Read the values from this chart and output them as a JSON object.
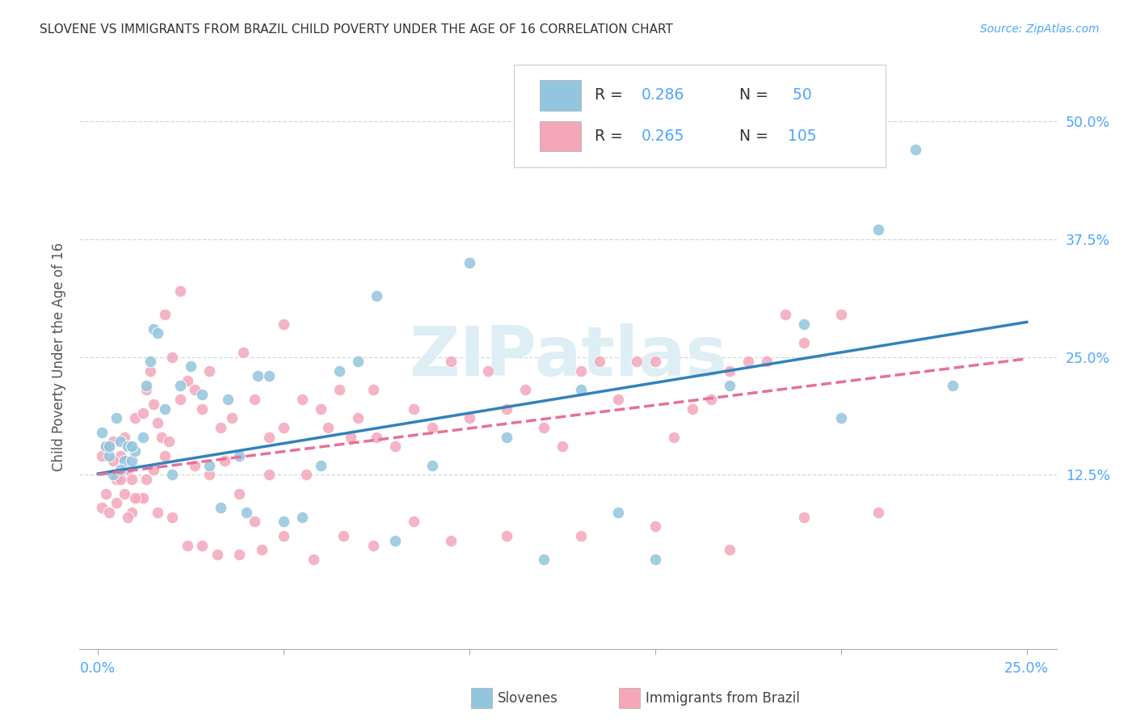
{
  "title": "SLOVENE VS IMMIGRANTS FROM BRAZIL CHILD POVERTY UNDER THE AGE OF 16 CORRELATION CHART",
  "source": "Source: ZipAtlas.com",
  "ylabel": "Child Poverty Under the Age of 16",
  "xlim": [
    -0.005,
    0.258
  ],
  "ylim": [
    -0.06,
    0.56
  ],
  "xtick_positions": [
    0.0,
    0.05,
    0.1,
    0.15,
    0.2,
    0.25
  ],
  "xtick_labels": [
    "0.0%",
    "",
    "",
    "",
    "",
    "25.0%"
  ],
  "ytick_vals": [
    0.125,
    0.25,
    0.375,
    0.5
  ],
  "ytick_labels": [
    "12.5%",
    "25.0%",
    "37.5%",
    "50.0%"
  ],
  "legend_r1": "R = 0.286",
  "legend_n1": "N =  50",
  "legend_r2": "R = 0.265",
  "legend_n2": "N = 105",
  "color_blue": "#92c5de",
  "color_pink": "#f4a7b9",
  "line_blue": "#3182bd",
  "line_pink": "#e8709a",
  "axis_tick_color": "#4da6ff",
  "background_color": "#ffffff",
  "watermark": "ZIPatlas",
  "watermark_color": "#ddeef5",
  "grid_color": "#d0d8e0",
  "bottom_legend_labels": [
    "Slovenes",
    "Immigrants from Brazil"
  ],
  "slov_x": [
    0.002,
    0.003,
    0.004,
    0.005,
    0.006,
    0.007,
    0.008,
    0.009,
    0.01,
    0.012,
    0.013,
    0.014,
    0.015,
    0.016,
    0.018,
    0.02,
    0.022,
    0.025,
    0.028,
    0.03,
    0.033,
    0.035,
    0.038,
    0.04,
    0.043,
    0.046,
    0.05,
    0.055,
    0.06,
    0.065,
    0.07,
    0.075,
    0.08,
    0.09,
    0.1,
    0.11,
    0.12,
    0.13,
    0.14,
    0.15,
    0.17,
    0.19,
    0.2,
    0.21,
    0.22,
    0.23,
    0.001,
    0.003,
    0.006,
    0.009
  ],
  "slov_y": [
    0.155,
    0.145,
    0.125,
    0.185,
    0.16,
    0.14,
    0.155,
    0.14,
    0.15,
    0.165,
    0.22,
    0.245,
    0.28,
    0.275,
    0.195,
    0.125,
    0.22,
    0.24,
    0.21,
    0.135,
    0.09,
    0.205,
    0.145,
    0.085,
    0.23,
    0.23,
    0.075,
    0.08,
    0.135,
    0.235,
    0.245,
    0.315,
    0.055,
    0.135,
    0.35,
    0.165,
    0.035,
    0.215,
    0.085,
    0.035,
    0.22,
    0.285,
    0.185,
    0.385,
    0.47,
    0.22,
    0.17,
    0.155,
    0.13,
    0.155
  ],
  "braz_x": [
    0.001,
    0.002,
    0.003,
    0.004,
    0.005,
    0.006,
    0.007,
    0.008,
    0.009,
    0.01,
    0.011,
    0.012,
    0.013,
    0.014,
    0.015,
    0.016,
    0.017,
    0.018,
    0.019,
    0.02,
    0.022,
    0.024,
    0.026,
    0.028,
    0.03,
    0.033,
    0.036,
    0.039,
    0.042,
    0.046,
    0.05,
    0.055,
    0.06,
    0.065,
    0.07,
    0.075,
    0.08,
    0.085,
    0.09,
    0.095,
    0.1,
    0.105,
    0.11,
    0.115,
    0.12,
    0.125,
    0.13,
    0.135,
    0.14,
    0.145,
    0.15,
    0.155,
    0.16,
    0.165,
    0.17,
    0.175,
    0.18,
    0.185,
    0.19,
    0.2,
    0.001,
    0.003,
    0.005,
    0.007,
    0.009,
    0.012,
    0.015,
    0.018,
    0.022,
    0.026,
    0.03,
    0.034,
    0.038,
    0.042,
    0.046,
    0.05,
    0.056,
    0.062,
    0.068,
    0.074,
    0.002,
    0.004,
    0.006,
    0.008,
    0.01,
    0.013,
    0.016,
    0.02,
    0.024,
    0.028,
    0.032,
    0.038,
    0.044,
    0.05,
    0.058,
    0.066,
    0.074,
    0.085,
    0.095,
    0.11,
    0.13,
    0.15,
    0.17,
    0.19,
    0.21
  ],
  "braz_y": [
    0.145,
    0.105,
    0.155,
    0.16,
    0.12,
    0.145,
    0.165,
    0.13,
    0.12,
    0.185,
    0.1,
    0.19,
    0.215,
    0.235,
    0.2,
    0.18,
    0.165,
    0.295,
    0.16,
    0.25,
    0.32,
    0.225,
    0.215,
    0.195,
    0.235,
    0.175,
    0.185,
    0.255,
    0.205,
    0.165,
    0.285,
    0.205,
    0.195,
    0.215,
    0.185,
    0.165,
    0.155,
    0.195,
    0.175,
    0.245,
    0.185,
    0.235,
    0.195,
    0.215,
    0.175,
    0.155,
    0.235,
    0.245,
    0.205,
    0.245,
    0.245,
    0.165,
    0.195,
    0.205,
    0.235,
    0.245,
    0.245,
    0.295,
    0.265,
    0.295,
    0.09,
    0.085,
    0.095,
    0.105,
    0.085,
    0.1,
    0.13,
    0.145,
    0.205,
    0.135,
    0.125,
    0.14,
    0.105,
    0.075,
    0.125,
    0.175,
    0.125,
    0.175,
    0.165,
    0.215,
    0.155,
    0.14,
    0.12,
    0.08,
    0.1,
    0.12,
    0.085,
    0.08,
    0.05,
    0.05,
    0.04,
    0.04,
    0.045,
    0.06,
    0.035,
    0.06,
    0.05,
    0.075,
    0.055,
    0.06,
    0.06,
    0.07,
    0.045,
    0.08,
    0.085
  ]
}
